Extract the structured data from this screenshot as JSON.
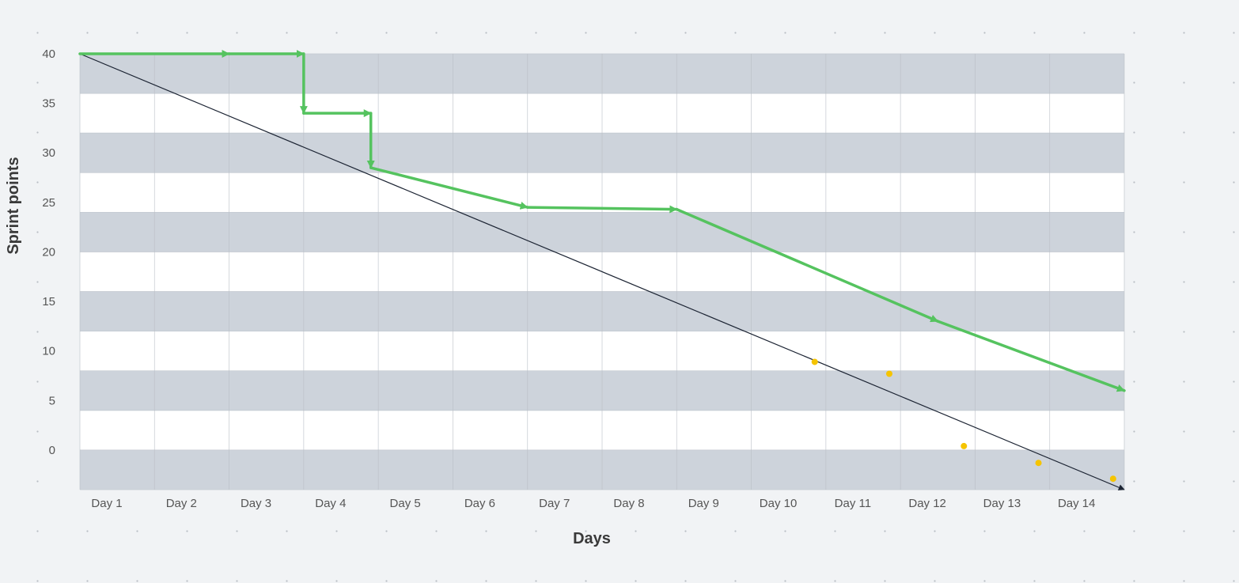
{
  "chart_data": {
    "type": "line",
    "title": "",
    "xlabel": "Days",
    "ylabel": "Sprint points",
    "categories": [
      "Day 1",
      "Day 2",
      "Day 3",
      "Day 4",
      "Day 5",
      "Day 6",
      "Day 7",
      "Day 8",
      "Day 9",
      "Day 10",
      "Day 11",
      "Day 12",
      "Day 13",
      "Day 14"
    ],
    "yticks": [
      0,
      5,
      10,
      15,
      20,
      25,
      30,
      35,
      40
    ],
    "ylim": [
      -4,
      40
    ],
    "xlim": [
      1,
      15
    ],
    "grid": true,
    "legend": "none",
    "colors": {
      "actual": "#55c35f",
      "ideal": "#1c2433",
      "scope": "#f5c400",
      "band_dark": "#cdd3db",
      "band_light": "#ffffff"
    },
    "series": [
      {
        "role": "ideal",
        "points": [
          [
            1,
            40
          ],
          [
            15,
            -4
          ]
        ]
      },
      {
        "role": "actual",
        "points": [
          [
            1,
            40
          ],
          [
            3,
            40
          ],
          [
            4,
            40
          ],
          [
            4,
            34
          ],
          [
            4.9,
            34
          ],
          [
            4.9,
            28.5
          ],
          [
            7,
            24.5
          ],
          [
            9,
            24.3
          ],
          [
            12.5,
            13
          ],
          [
            15,
            6
          ]
        ]
      },
      {
        "role": "scope",
        "points": [
          [
            10.85,
            8.9
          ],
          [
            11.85,
            7.7
          ],
          [
            12.85,
            0.4
          ],
          [
            13.85,
            -1.3
          ],
          [
            14.85,
            -2.9
          ]
        ]
      }
    ]
  }
}
